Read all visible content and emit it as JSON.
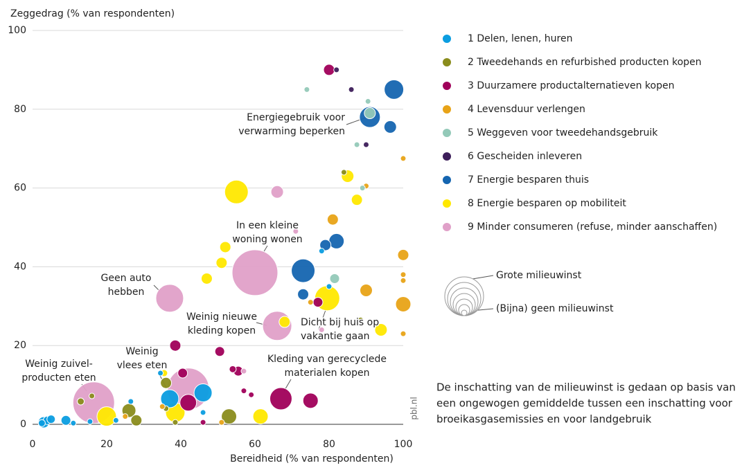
{
  "chart_data": {
    "type": "bubble",
    "ylabel": "Zeggedrag (% van respondenten)",
    "xlabel": "Bereidheid (% van respondenten)",
    "xlim": [
      0,
      100
    ],
    "xticks": [
      0,
      20,
      40,
      60,
      80,
      100
    ],
    "ylim": [
      0,
      100
    ],
    "yticks": [
      0,
      20,
      40,
      60,
      80,
      100
    ],
    "grid": true,
    "series": [
      {
        "name": "1 Delen, lenen, huren",
        "color": "#0b9de0",
        "x": [
          3,
          4,
          5,
          9,
          11,
          15.5,
          22.5,
          26.5,
          34.5,
          37,
          46,
          46,
          80,
          78,
          2.5
        ],
        "values": [
          0.5,
          1,
          1.3,
          1,
          0.3,
          0.7,
          1,
          5.8,
          13,
          6.5,
          8,
          3,
          35,
          44,
          0.3
        ],
        "sizes": [
          8,
          6,
          6,
          7,
          4,
          4,
          4,
          4,
          4,
          13,
          13,
          4,
          4,
          4,
          5
        ]
      },
      {
        "name": "2 Tweedehands en refurbished producten kopen",
        "color": "#8a8c1c",
        "x": [
          13,
          16,
          26,
          28,
          36,
          36,
          38.5,
          53,
          84,
          88.5
        ],
        "values": [
          5.8,
          7.2,
          3.5,
          1,
          10.5,
          4,
          0.5,
          2,
          64,
          26.5
        ],
        "sizes": [
          5,
          4,
          10,
          8,
          8,
          4,
          4,
          11,
          4,
          4
        ]
      },
      {
        "name": "3 Duurzamere productalternatieven kopen",
        "color": "#a0005a",
        "x": [
          80,
          38.5,
          40.5,
          42,
          50.5,
          54,
          55.5,
          57,
          59,
          67,
          75,
          77,
          46
        ],
        "values": [
          90,
          20,
          13,
          5.5,
          18.5,
          14,
          13.5,
          8.5,
          7.5,
          6.5,
          6,
          31,
          0.5
        ],
        "sizes": [
          8,
          8,
          7,
          12,
          7,
          5,
          7,
          4,
          4,
          16,
          11,
          7,
          4
        ]
      },
      {
        "name": "4 Levensduur verlengen",
        "color": "#e8a317",
        "x": [
          100,
          90,
          81,
          100,
          100,
          100,
          90,
          100,
          100,
          75,
          51,
          25,
          35
        ],
        "values": [
          67.5,
          60.5,
          52,
          43,
          38,
          36.5,
          34,
          30.5,
          23,
          31,
          0.5,
          2,
          4.5
        ],
        "sizes": [
          4,
          4,
          8,
          8,
          4,
          4,
          9,
          11,
          4,
          4,
          4,
          4,
          4
        ]
      },
      {
        "name": "5 Weggeven voor tweedehandsgebruik",
        "color": "#93c9b8",
        "x": [
          74,
          90.5,
          91,
          87.5,
          89,
          81.5
        ],
        "values": [
          85,
          82,
          79,
          71,
          60,
          37
        ],
        "sizes": [
          4,
          4,
          8,
          4,
          4,
          7
        ]
      },
      {
        "name": "6 Gescheiden inleveren",
        "color": "#3d1e5a",
        "x": [
          82,
          86,
          90
        ],
        "values": [
          90,
          85,
          71
        ],
        "sizes": [
          4,
          4,
          4
        ]
      },
      {
        "name": "7 Energie besparen thuis",
        "color": "#1565b0",
        "x": [
          97.5,
          91,
          96.5,
          79,
          82,
          73,
          73
        ],
        "values": [
          85,
          78,
          75.5,
          45.5,
          46.5,
          39,
          33
        ],
        "sizes": [
          14,
          15,
          9,
          8,
          11,
          17,
          8
        ]
      },
      {
        "name": "8 Energie besparen op mobiliteit",
        "color": "#ffe800",
        "x": [
          55,
          85,
          87.5,
          52,
          51,
          47,
          79.5,
          68,
          94,
          20,
          38.5,
          61.5,
          35.5
        ],
        "values": [
          59,
          63,
          57,
          45,
          41,
          37,
          32,
          26,
          24,
          2,
          3,
          2,
          13
        ],
        "sizes": [
          17,
          9,
          8,
          8,
          8,
          8,
          18,
          8,
          9,
          14,
          14,
          11,
          5
        ]
      },
      {
        "name": "9 Minder consumeren (refuse, minder aanschaffen)",
        "color": "#e0a0c8",
        "x": [
          66,
          71,
          60,
          37,
          66,
          78,
          16.5,
          42,
          57
        ],
        "values": [
          59,
          49,
          38.5,
          32,
          25,
          24,
          5.5,
          9,
          13.5
        ],
        "sizes": [
          9,
          4,
          33,
          20,
          21,
          4,
          30,
          30,
          4
        ]
      }
    ],
    "annotations": [
      [
        "Energiegebruik voor",
        "verwarming beperken"
      ],
      [
        "In een kleine",
        "woning wonen"
      ],
      [
        "Geen auto",
        "hebben"
      ],
      [
        "Weinig nieuwe",
        "kleding kopen"
      ],
      [
        "Dicht bij huis op",
        "vakantie gaan"
      ],
      [
        "Kleding van gerecyclede",
        "materialen kopen"
      ],
      [
        "Weinig",
        "vlees eten"
      ],
      [
        "Weinig zuivel-",
        "producten eten"
      ]
    ],
    "size_legend": [
      "Grote milieuwinst",
      "(Bijna) geen milieuwinst"
    ],
    "note": [
      "De inschatting van de milieuwinst is gedaan op basis van",
      "een ongewogen gemiddelde tussen een inschatting voor",
      "broeikasgasemissies en voor landgebruik"
    ],
    "source": "pbl.nl"
  }
}
